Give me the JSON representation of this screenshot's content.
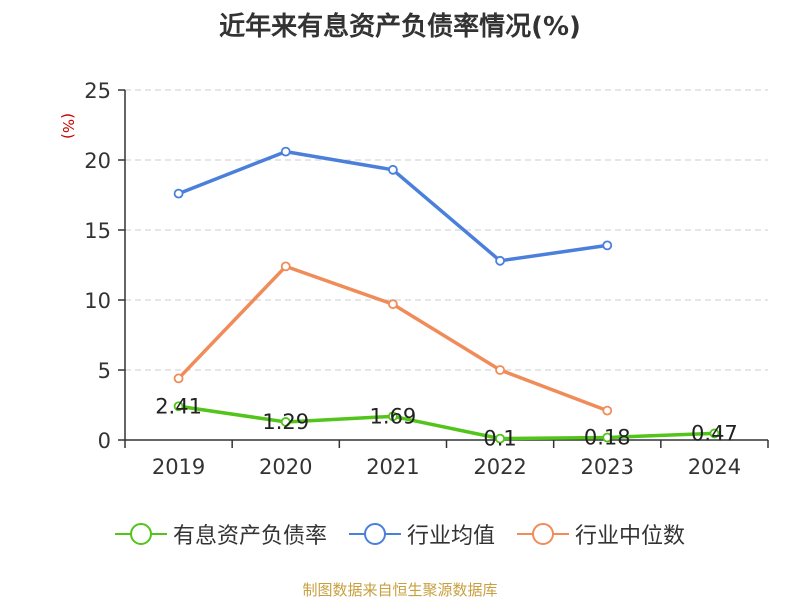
{
  "chart_data": {
    "type": "line",
    "title": "近年来有息资产负债率情况(%)",
    "ylabel": "(%)",
    "xlabel": "",
    "categories": [
      "2019",
      "2020",
      "2021",
      "2022",
      "2023",
      "2024"
    ],
    "ylim": [
      0,
      25
    ],
    "yticks": [
      0,
      5,
      10,
      15,
      20,
      25
    ],
    "grid": true,
    "legend_position": "bottom",
    "series": [
      {
        "name": "有息资产负债率",
        "color": "#52c41a",
        "values": [
          2.41,
          1.29,
          1.69,
          0.1,
          0.18,
          0.47
        ],
        "labels": [
          "2.41",
          "1.29",
          "1.69",
          "0.1",
          "0.18",
          "0.47"
        ]
      },
      {
        "name": "行业均值",
        "color": "#4a7fdc",
        "values": [
          17.6,
          20.6,
          19.3,
          12.8,
          13.9,
          null
        ]
      },
      {
        "name": "行业中位数",
        "color": "#f08c5a",
        "values": [
          4.4,
          12.4,
          9.7,
          5.0,
          2.1,
          null
        ]
      }
    ]
  },
  "source_text": "制图数据来自恒生聚源数据库"
}
